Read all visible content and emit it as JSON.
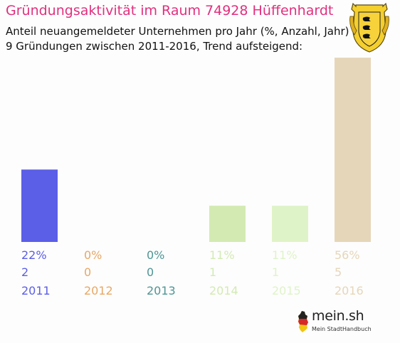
{
  "header": {
    "title": "Gründungsaktivität im Raum 74928 Hüffenhardt",
    "subtitle_line1": "Anteil neuangemeldeter Unternehmen pro Jahr (%, Anzahl, Jahr)",
    "subtitle_line2": "9 Gründungen zwischen 2011-2016, Trend aufsteigend:"
  },
  "logo": {
    "name": "mein.sh",
    "tagline": "Mein StadtHandbuch"
  },
  "chart_data": {
    "type": "bar",
    "title": "Gründungsaktivität im Raum 74928 Hüffenhardt",
    "categories": [
      "2011",
      "2012",
      "2013",
      "2014",
      "2015",
      "2016"
    ],
    "percent_labels": [
      "22%",
      "0%",
      "0%",
      "11%",
      "11%",
      "56%"
    ],
    "counts": [
      2,
      0,
      0,
      1,
      1,
      5
    ],
    "values": [
      22,
      0,
      0,
      11,
      11,
      56
    ],
    "bar_colors": [
      "#5b5ee6",
      "#e8a765",
      "#4f9595",
      "#d3eab3",
      "#dff3c8",
      "#e6d6b9"
    ],
    "label_colors": [
      "#5b5ee6",
      "#e8a765",
      "#4f9595",
      "#d3eab3",
      "#dff3c8",
      "#e6d6b9"
    ],
    "ylim": [
      0,
      56
    ],
    "grid": false,
    "legend": "none"
  }
}
